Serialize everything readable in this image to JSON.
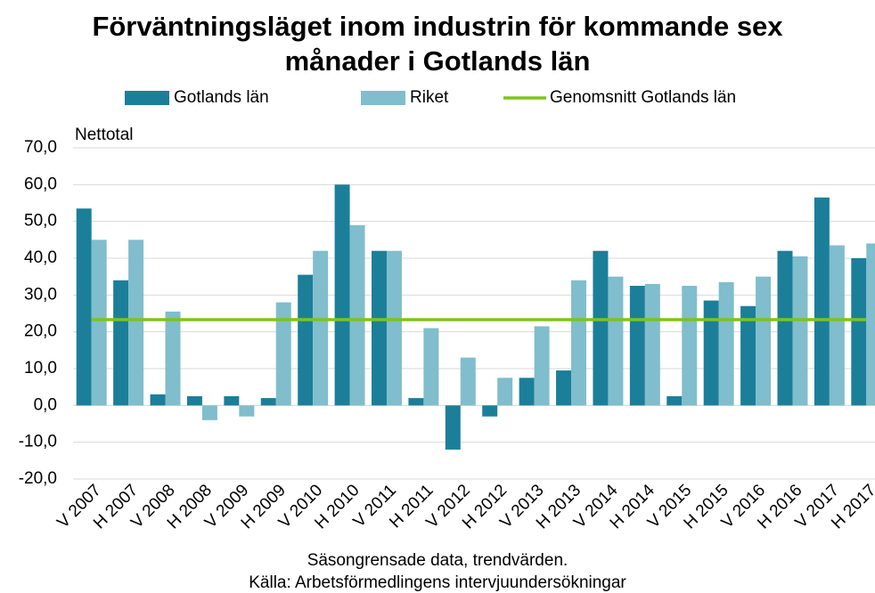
{
  "chart_data": {
    "type": "bar",
    "title": "Förväntningsläget inom industrin för kommande sex",
    "title_line2": "månader i Gotlands län",
    "y_axis_label": "Nettotal",
    "source_line1": "Säsongrensade data, trendvärden.",
    "source_line2": "Källa: Arbetsförmedlingens intervjuundersökningar",
    "categories": [
      "V 2007",
      "H 2007",
      "V 2008",
      "H 2008",
      "V 2009",
      "H 2009",
      "V 2010",
      "H 2010",
      "V 2011",
      "H 2011",
      "V 2012",
      "H 2012",
      "V 2013",
      "H 2013",
      "V 2014",
      "H 2014",
      "V 2015",
      "H 2015",
      "V 2016",
      "H 2016",
      "V 2017",
      "H 2017"
    ],
    "series": [
      {
        "name": "Gotlands län",
        "color": "#1b7f9a",
        "type": "bar",
        "values": [
          53.5,
          34,
          3,
          2.5,
          2.5,
          2,
          35.5,
          60,
          42,
          2,
          -12,
          -3,
          7.5,
          9.5,
          42,
          32.5,
          2.5,
          28.5,
          27,
          42,
          56.5,
          40
        ]
      },
      {
        "name": "Riket",
        "color": "#80bdcd",
        "type": "bar",
        "values": [
          45,
          45,
          25.5,
          -4,
          -3,
          28,
          42,
          49,
          42,
          21,
          13,
          7.5,
          21.5,
          34,
          35,
          33,
          32.5,
          33.5,
          35,
          40.5,
          43.5,
          44
        ]
      },
      {
        "name": "Genomsnitt Gotlands län",
        "color": "#7fc31c",
        "type": "line",
        "values": [
          23.3,
          23.3,
          23.3,
          23.3,
          23.3,
          23.3,
          23.3,
          23.3,
          23.3,
          23.3,
          23.3,
          23.3,
          23.3,
          23.3,
          23.3,
          23.3,
          23.3,
          23.3,
          23.3,
          23.3,
          23.3,
          23.3
        ]
      }
    ],
    "ylim": [
      -20,
      70
    ],
    "yticks": [
      {
        "value": -20,
        "label": "-20,0"
      },
      {
        "value": -10,
        "label": "-10,0"
      },
      {
        "value": 0,
        "label": "0,0"
      },
      {
        "value": 10,
        "label": "10,0"
      },
      {
        "value": 20,
        "label": "20,0"
      },
      {
        "value": 30,
        "label": "30,0"
      },
      {
        "value": 40,
        "label": "40,0"
      },
      {
        "value": 50,
        "label": "50,0"
      },
      {
        "value": 60,
        "label": "60,0"
      },
      {
        "value": 70,
        "label": "70,0"
      }
    ],
    "grid": true
  }
}
